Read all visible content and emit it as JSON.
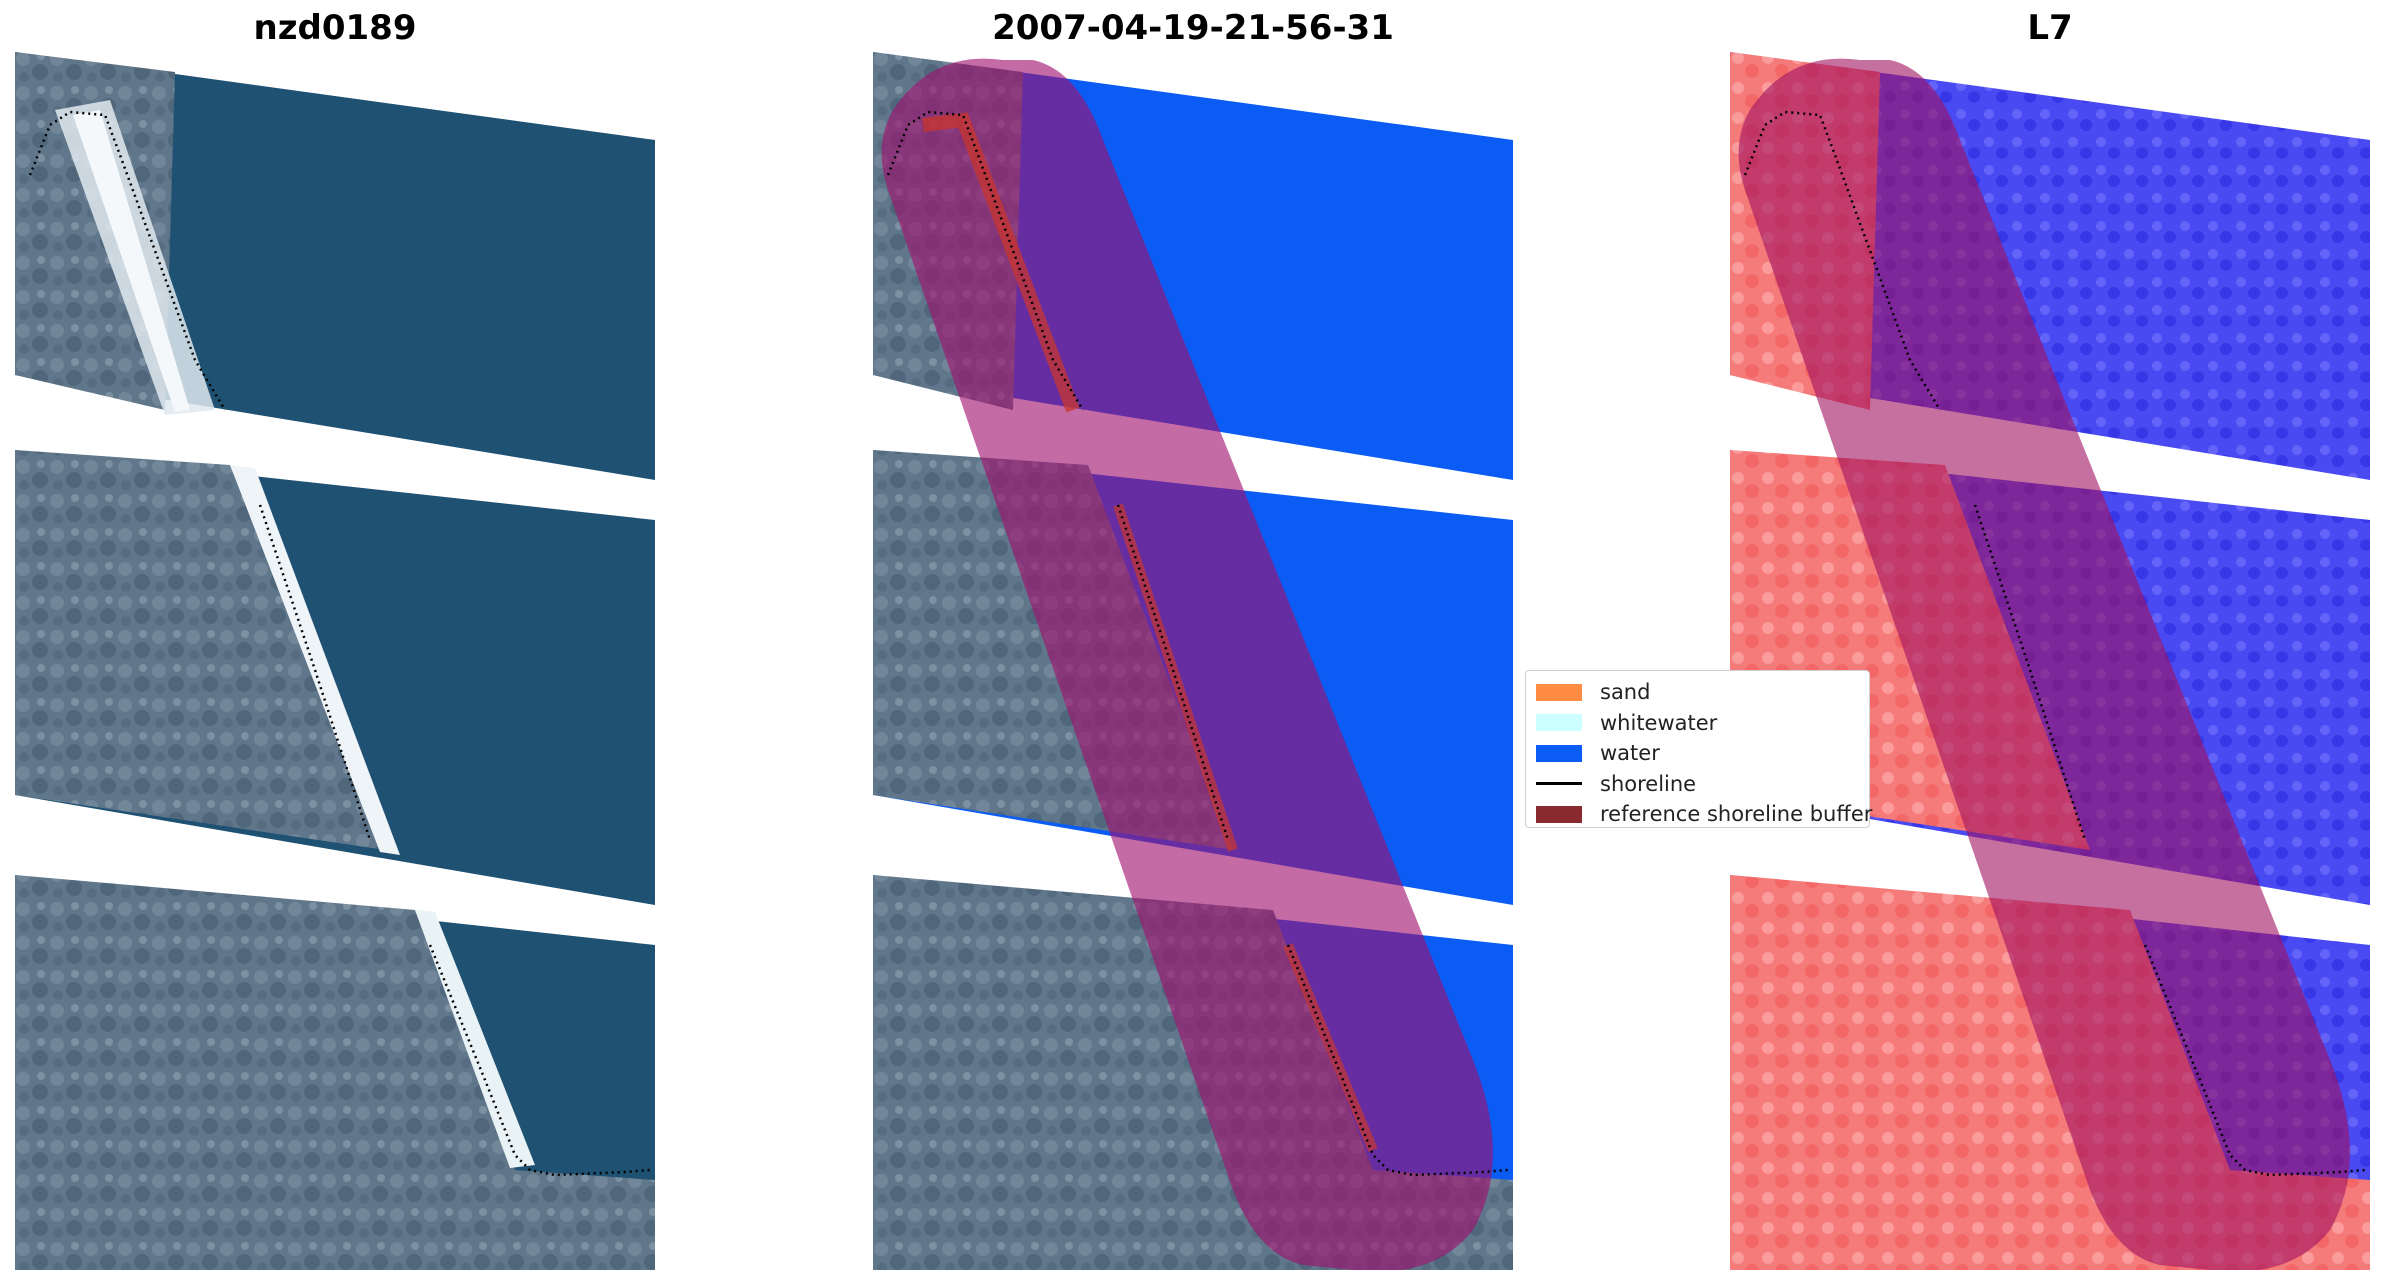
{
  "panels": {
    "left": {
      "title": "nzd0189"
    },
    "middle": {
      "title": "2007-04-19-21-56-31"
    },
    "right": {
      "title": "L7"
    }
  },
  "legend": {
    "items": [
      {
        "label": "sand",
        "color": "#ff8c42"
      },
      {
        "label": "whitewater",
        "color": "#ccffff"
      },
      {
        "label": "water",
        "color": "#0a5cf5"
      },
      {
        "label": "shoreline",
        "color": "#000000"
      },
      {
        "label": "reference shoreline buffer",
        "color": "#8b2a2e"
      }
    ]
  },
  "colors": {
    "ocean": "#1d4f72",
    "land": "#5f7488",
    "beach": "#e6eef2",
    "water_class": "#0a5cf5",
    "buffer_overlay": "#c0185a",
    "water_index_blue": "#3a3aee",
    "land_index_red": "#f25a5a"
  }
}
